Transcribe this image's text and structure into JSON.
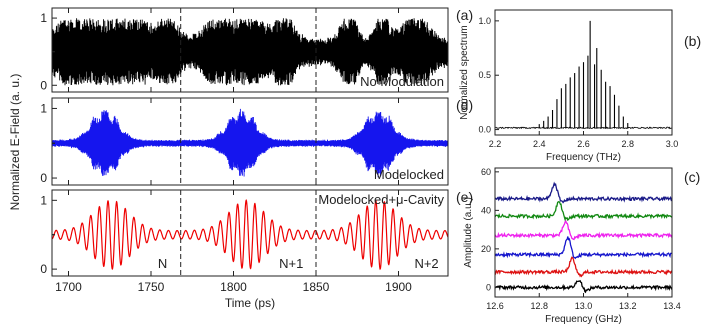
{
  "chart_data": [
    {
      "panel": "(a)",
      "type": "line",
      "series_color": "#000000",
      "annotation": "No Modulation",
      "y_ticks": [
        "0",
        "1"
      ],
      "ylim": [
        -0.1,
        1.15
      ],
      "xlim": [
        1690,
        1930
      ],
      "x_ticks": [],
      "dashed_x": [
        1768,
        1850
      ],
      "signal": "amplitude-noise carrier, ~4 bursts per period, no clear envelope",
      "bursts": [
        {
          "t": 1700,
          "a": 0.7
        },
        {
          "t": 1720,
          "a": 0.9
        },
        {
          "t": 1740,
          "a": 0.95
        },
        {
          "t": 1760,
          "a": 0.85
        },
        {
          "t": 1790,
          "a": 0.8
        },
        {
          "t": 1810,
          "a": 0.95
        },
        {
          "t": 1830,
          "a": 0.85
        },
        {
          "t": 1870,
          "a": 0.9
        },
        {
          "t": 1890,
          "a": 0.95
        },
        {
          "t": 1910,
          "a": 0.8
        }
      ]
    },
    {
      "panel": "(d)",
      "type": "line",
      "series_color": "#1515ee",
      "annotation": "Modelocked",
      "y_ticks": [
        "0",
        "1"
      ],
      "ylim": [
        -0.1,
        1.15
      ],
      "xlim": [
        1690,
        1930
      ],
      "x_ticks": [],
      "dashed_x": [
        1768,
        1850
      ],
      "pulse_centers_ps": [
        1722,
        1805,
        1888
      ],
      "pulse_peak": 1.0,
      "baseline": 0.5
    },
    {
      "panel": "(e)",
      "type": "line",
      "series_color": "#ee0000",
      "annotation": "Modelocked+μ-Cavity",
      "labels": [
        "N",
        "N+1",
        "N+2"
      ],
      "y_ticks": [
        "0",
        "1"
      ],
      "ylim": [
        -0.1,
        1.15
      ],
      "xlim": [
        1690,
        1930
      ],
      "x_ticks": [
        "1700",
        "1750",
        "1800",
        "1850",
        "1900"
      ],
      "x_tick_values": [
        1700,
        1750,
        1800,
        1850,
        1900
      ],
      "xlabel": "Time (ps)",
      "dashed_x": [
        1768,
        1850
      ],
      "pulse_centers_ps": [
        1726,
        1808,
        1888
      ],
      "pulse_peak": 1.0,
      "baseline": 0.5
    },
    {
      "panel": "(b)",
      "type": "bar",
      "series_color": "#000000",
      "xlabel": "Frequency (THz)",
      "ylabel": "Normalized spectrum",
      "xlim": [
        2.2,
        3.0
      ],
      "ylim": [
        -0.05,
        1.1
      ],
      "x_ticks": [
        "2.2",
        "2.4",
        "2.6",
        "2.8",
        "3.0"
      ],
      "x_tick_values": [
        2.2,
        2.4,
        2.6,
        2.8,
        3.0
      ],
      "y_ticks": [
        "0.0",
        "0.5",
        "1.0"
      ],
      "y_tick_values": [
        0.0,
        0.5,
        1.0
      ],
      "lines": [
        {
          "f": 2.4,
          "v": 0.05
        },
        {
          "f": 2.42,
          "v": 0.08
        },
        {
          "f": 2.44,
          "v": 0.12
        },
        {
          "f": 2.46,
          "v": 0.18
        },
        {
          "f": 2.48,
          "v": 0.28
        },
        {
          "f": 2.5,
          "v": 0.38
        },
        {
          "f": 2.52,
          "v": 0.42
        },
        {
          "f": 2.54,
          "v": 0.48
        },
        {
          "f": 2.56,
          "v": 0.52
        },
        {
          "f": 2.58,
          "v": 0.58
        },
        {
          "f": 2.6,
          "v": 0.62
        },
        {
          "f": 2.62,
          "v": 0.68
        },
        {
          "f": 2.63,
          "v": 1.0
        },
        {
          "f": 2.65,
          "v": 0.6
        },
        {
          "f": 2.66,
          "v": 0.75
        },
        {
          "f": 2.68,
          "v": 0.55
        },
        {
          "f": 2.7,
          "v": 0.44
        },
        {
          "f": 2.72,
          "v": 0.4
        },
        {
          "f": 2.74,
          "v": 0.32
        },
        {
          "f": 2.76,
          "v": 0.22
        },
        {
          "f": 2.78,
          "v": 0.12
        },
        {
          "f": 2.8,
          "v": 0.06
        }
      ]
    },
    {
      "panel": "(c)",
      "type": "line",
      "xlabel": "Frequency (GHz)",
      "ylabel": "Amplitude (a.u.)",
      "xlim": [
        12.6,
        13.4
      ],
      "ylim": [
        -5,
        62
      ],
      "x_ticks": [
        "12.6",
        "12.8",
        "13.0",
        "13.2",
        "13.4"
      ],
      "x_tick_values": [
        12.6,
        12.8,
        13.0,
        13.2,
        13.4
      ],
      "y_ticks": [
        "0",
        "20",
        "40",
        "60"
      ],
      "y_tick_values": [
        0,
        20,
        40,
        60
      ],
      "series": [
        {
          "color": "#000000",
          "offset": 0,
          "peak_f": 12.98,
          "peak_h": 4
        },
        {
          "color": "#dd1111",
          "offset": 8,
          "peak_f": 12.95,
          "peak_h": 7
        },
        {
          "color": "#1515cc",
          "offset": 17,
          "peak_f": 12.93,
          "peak_h": 9
        },
        {
          "color": "#ee22ee",
          "offset": 27,
          "peak_f": 12.92,
          "peak_h": 7
        },
        {
          "color": "#118811",
          "offset": 37,
          "peak_f": 12.89,
          "peak_h": 8
        },
        {
          "color": "#1a1a88",
          "offset": 46,
          "peak_f": 12.87,
          "peak_h": 8
        }
      ]
    }
  ],
  "left_ylabel": "Normalized E-Field (a. u.)"
}
